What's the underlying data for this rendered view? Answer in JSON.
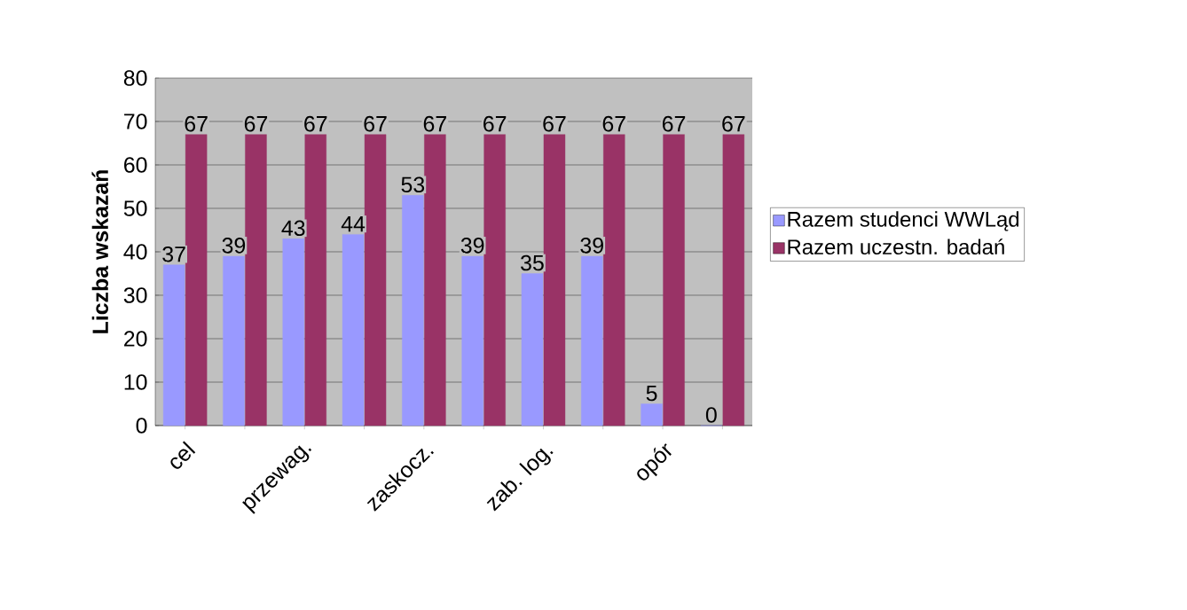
{
  "chart_data": {
    "type": "bar",
    "ylabel": "Liczba wskazań",
    "categories": [
      "cel",
      null,
      "przewag.",
      null,
      "zaskocz.",
      null,
      "zab. log.",
      null,
      "opór",
      null
    ],
    "series": [
      {
        "name": "Razem  studenci WWLąd",
        "color": "#9999ff",
        "values": [
          37,
          39,
          43,
          44,
          53,
          39,
          35,
          39,
          5,
          0
        ]
      },
      {
        "name": "Razem uczestn. badań",
        "color": "#993366",
        "values": [
          67,
          67,
          67,
          67,
          67,
          67,
          67,
          67,
          67,
          67
        ]
      }
    ],
    "ylim": [
      0,
      80
    ],
    "yticks": [
      0,
      10,
      20,
      30,
      40,
      50,
      60,
      70,
      80
    ],
    "grid": "y",
    "legend": "right",
    "data_labels": true
  }
}
